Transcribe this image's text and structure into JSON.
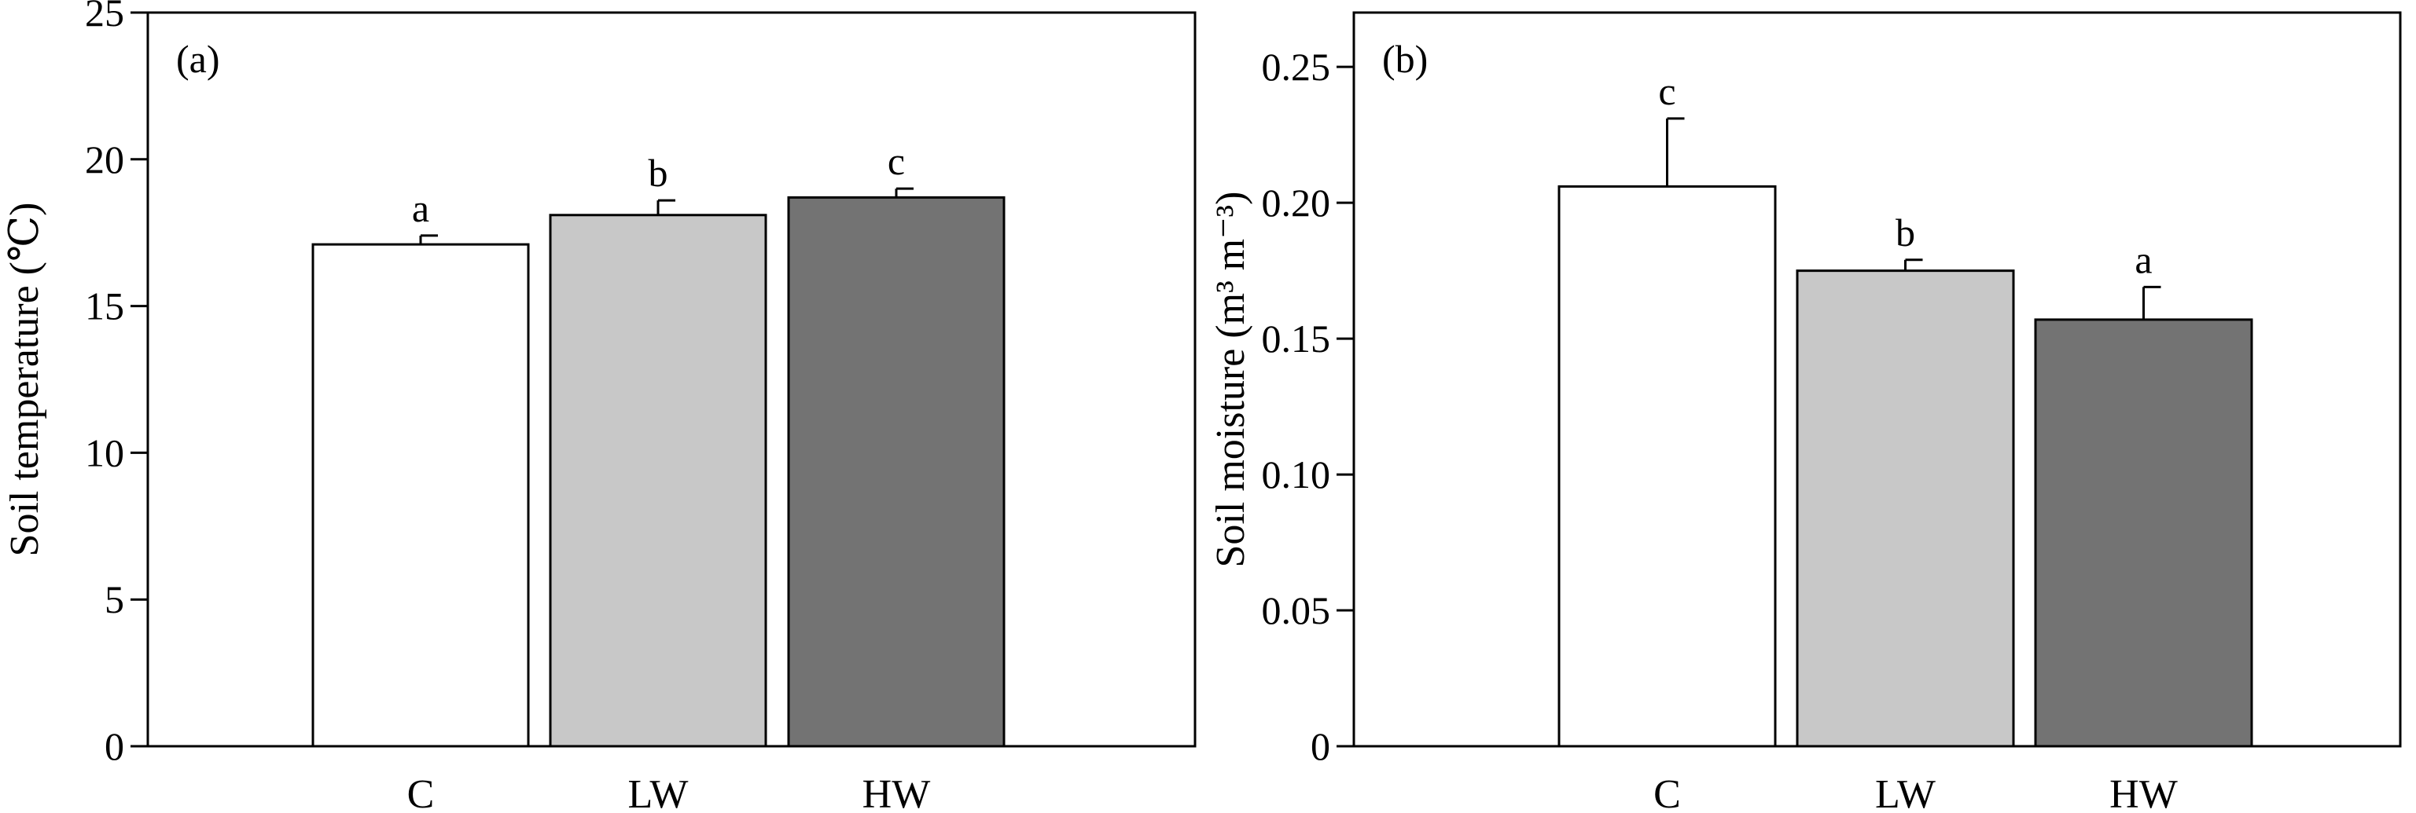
{
  "chart_data": [
    {
      "type": "bar",
      "panel_label": "(a)",
      "title": "",
      "xlabel": "",
      "ylabel": "Soil temperature (℃)",
      "categories": [
        "C",
        "LW",
        "HW"
      ],
      "values": [
        17.1,
        18.1,
        18.7
      ],
      "errors": [
        0.3,
        0.5,
        0.3
      ],
      "significance": [
        "a",
        "b",
        "c"
      ],
      "bar_colors": [
        "#ffffff",
        "#c8c8c8",
        "#737373"
      ],
      "ylim": [
        0,
        25
      ],
      "yticks": [
        0,
        5,
        10,
        15,
        20,
        25
      ],
      "ytick_labels": [
        "0",
        "5",
        "10",
        "15",
        "20",
        "25"
      ],
      "grid": false
    },
    {
      "type": "bar",
      "panel_label": "(b)",
      "title": "",
      "xlabel": "",
      "ylabel": "Soil moisture (m³ m⁻³)",
      "categories": [
        "C",
        "LW",
        "HW"
      ],
      "values": [
        0.206,
        0.175,
        0.157
      ],
      "errors": [
        0.025,
        0.004,
        0.012
      ],
      "significance": [
        "c",
        "b",
        "a"
      ],
      "bar_colors": [
        "#ffffff",
        "#c8c8c8",
        "#737373"
      ],
      "ylim": [
        0,
        0.27
      ],
      "yticks": [
        0,
        0.05,
        0.1,
        0.15,
        0.2,
        0.25
      ],
      "ytick_labels": [
        "0",
        "0.05",
        "0.10",
        "0.15",
        "0.20",
        "0.25"
      ],
      "grid": false
    }
  ]
}
